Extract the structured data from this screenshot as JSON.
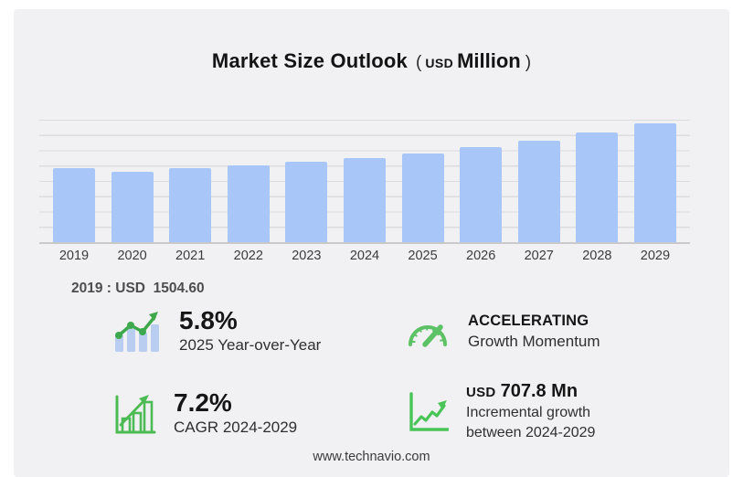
{
  "title": {
    "main": "Market Size Outlook",
    "paren_open": "(",
    "currency": "USD",
    "unit": "Million",
    "paren_close": ")"
  },
  "annotation": {
    "text": "2019 : USD  1504.60"
  },
  "stats": [
    {
      "icon": "bar-chart-trend-up-icon",
      "value": "5.8%",
      "label": "2025 Year-over-Year"
    },
    {
      "icon": "speedometer-icon",
      "value": "ACCELERATING",
      "label": "Growth Momentum"
    },
    {
      "icon": "bar-chart-growth-outline-icon",
      "value": "7.2%",
      "label": "CAGR 2024-2029"
    },
    {
      "icon": "line-chart-arrow-up-icon",
      "value_prefix": "USD",
      "value": "707.8 Mn",
      "label_line1": "Incremental growth",
      "label_line2": "between 2024-2029"
    }
  ],
  "footer": {
    "source": "www.technavio.com"
  },
  "chart_data": {
    "type": "bar",
    "title": "Market Size Outlook (USD Million)",
    "categories": [
      "2019",
      "2020",
      "2021",
      "2022",
      "2023",
      "2024",
      "2025",
      "2026",
      "2027",
      "2028",
      "2029"
    ],
    "values": [
      1504.6,
      1440,
      1505,
      1555,
      1637,
      1703,
      1802,
      1931,
      2071,
      2233,
      2411
    ],
    "xlabel": "",
    "ylabel": "",
    "ylim": [
      0,
      2490
    ],
    "grid": "horizontal",
    "legend": "none",
    "annotations": {
      "value_2019": "2019 : USD 1504.60",
      "yoy_2025": "5.8%",
      "cagr_2024_2029": "7.2%",
      "incremental_growth_2024_2029": "USD 707.8 Mn",
      "momentum": "ACCELERATING"
    }
  },
  "colors": {
    "panel_bg": "#f1f1f3",
    "bar": "#a9c6f8",
    "gridline": "#dcdce0",
    "baseline": "#c9c9cd",
    "title_text": "#141414",
    "axis_text": "#3b3b3b",
    "annotation_text": "#4d4d4d",
    "stat_value_text": "#161616",
    "stat_label_text": "#2f2f2f",
    "green_trend": "#3ea94c",
    "green_gauge": "#5cc265",
    "green_outline": "#4cbb54",
    "green_line": "#49c457",
    "icon_bar_fill": "#b9cdf0"
  }
}
